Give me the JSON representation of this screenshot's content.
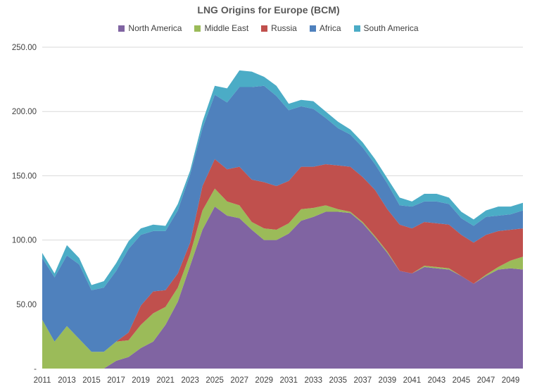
{
  "chart_data": {
    "type": "area",
    "stacked": true,
    "title": "LNG Origins for Europe (BCM)",
    "xlabel": "",
    "ylabel": "",
    "ylim": [
      0,
      250
    ],
    "yticks": [
      0,
      50,
      100,
      150,
      200,
      250
    ],
    "ytick_labels": [
      "-",
      "50.00",
      "100.00",
      "150.00",
      "200.00",
      "250.00"
    ],
    "xtick_labels": [
      "2011",
      "2013",
      "2015",
      "2017",
      "2019",
      "2021",
      "2023",
      "2025",
      "2027",
      "2029",
      "2031",
      "2033",
      "2035",
      "2037",
      "2039",
      "2041",
      "2043",
      "2045",
      "2047",
      "2049"
    ],
    "grid": true,
    "legend_position": "top",
    "x": [
      2011,
      2012,
      2013,
      2014,
      2015,
      2016,
      2017,
      2018,
      2019,
      2020,
      2021,
      2022,
      2023,
      2024,
      2025,
      2026,
      2027,
      2028,
      2029,
      2030,
      2031,
      2032,
      2033,
      2034,
      2035,
      2036,
      2037,
      2038,
      2039,
      2040,
      2041,
      2042,
      2043,
      2044,
      2045,
      2046,
      2047,
      2048,
      2049,
      2050
    ],
    "series": [
      {
        "name": "North America",
        "color": "#8064A2",
        "values": [
          0,
          0,
          0,
          0,
          0,
          0,
          6,
          9,
          16,
          21,
          34,
          52,
          80,
          108,
          126,
          119,
          117,
          108,
          100,
          100,
          105,
          115,
          118,
          122,
          122,
          121,
          113,
          102,
          90,
          76,
          74,
          79,
          78,
          77,
          72,
          66,
          72,
          77,
          78,
          77
        ]
      },
      {
        "name": "Middle East",
        "color": "#9BBB59",
        "values": [
          38,
          21,
          33,
          23,
          13,
          13,
          15,
          13,
          18,
          22,
          14,
          11,
          9,
          15,
          14,
          11,
          10,
          6,
          9,
          8,
          8,
          9,
          7,
          5,
          2,
          1,
          1,
          1,
          1,
          0,
          0,
          1,
          1,
          1,
          0,
          0,
          1,
          2,
          6,
          10
        ]
      },
      {
        "name": "Russia",
        "color": "#C0504D",
        "values": [
          0,
          0,
          0,
          0,
          0,
          0,
          0,
          6,
          15,
          17,
          13,
          11,
          9,
          19,
          23,
          25,
          30,
          33,
          36,
          34,
          33,
          33,
          32,
          32,
          34,
          35,
          35,
          36,
          33,
          36,
          35,
          34,
          34,
          34,
          32,
          32,
          31,
          28,
          24,
          22
        ]
      },
      {
        "name": "Africa",
        "color": "#4F81BD",
        "values": [
          48,
          50,
          55,
          58,
          48,
          50,
          55,
          65,
          55,
          47,
          46,
          49,
          53,
          45,
          50,
          52,
          62,
          72,
          75,
          70,
          55,
          47,
          45,
          36,
          29,
          25,
          23,
          20,
          20,
          15,
          17,
          16,
          17,
          16,
          13,
          13,
          14,
          12,
          12,
          14
        ]
      },
      {
        "name": "South America",
        "color": "#4BACC6",
        "values": [
          4,
          3,
          8,
          5,
          4,
          5,
          6,
          6,
          5,
          5,
          4,
          5,
          3,
          5,
          7,
          11,
          13,
          12,
          7,
          8,
          5,
          5,
          6,
          5,
          5,
          4,
          4,
          4,
          4,
          6,
          4,
          6,
          6,
          5,
          5,
          5,
          5,
          7,
          6,
          6
        ]
      }
    ]
  }
}
